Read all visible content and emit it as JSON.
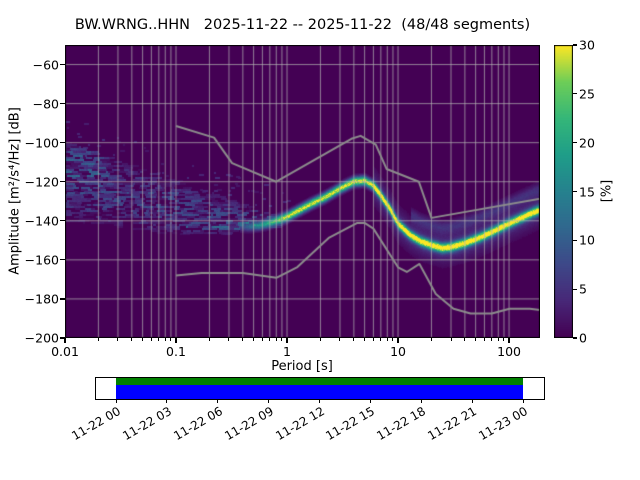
{
  "title": "BW.WRNG..HHN   2025-11-22 -- 2025-11-22  (48/48 segments)",
  "axes": {
    "xlabel": "Period [s]",
    "ylabel": "Amplitude [m²/s⁴/Hz] [dB]",
    "x_ticks": [
      0.01,
      0.1,
      1,
      10,
      100
    ],
    "x_tick_labels": [
      "0.01",
      "0.1",
      "1",
      "10",
      "100"
    ],
    "y_ticks": [
      -60,
      -80,
      -100,
      -120,
      -140,
      -160,
      -180,
      -200
    ],
    "y_tick_labels": [
      "−60",
      "−80",
      "−100",
      "−120",
      "−140",
      "−160",
      "−180",
      "−200"
    ]
  },
  "colorbar": {
    "label": "[%]",
    "ticks": [
      0,
      5,
      10,
      15,
      20,
      25,
      30
    ],
    "tick_labels": [
      "0",
      "5",
      "10",
      "15",
      "20",
      "25",
      "30"
    ]
  },
  "chart_data": {
    "type": "heatmap",
    "title": "BW.WRNG..HHN   2025-11-22 -- 2025-11-22  (48/48 segments)",
    "station": "BW.WRNG..HHN",
    "date_range": "2025-11-22 -- 2025-11-22",
    "segments_used": 48,
    "segments_total": 48,
    "xlabel": "Period [s]",
    "ylabel": "Amplitude [m²/s⁴/Hz] [dB]",
    "x_scale": "log",
    "xlim": [
      0.01,
      190
    ],
    "ylim": [
      -200,
      -50
    ],
    "colorbar": {
      "label": "[%]",
      "range": [
        0,
        30
      ],
      "colormap": "viridis"
    },
    "mode_curve": {
      "description": "Bright ridge: most probable PSD level (~30%) vs period",
      "period_s": [
        0.45,
        0.55,
        0.7,
        0.85,
        1.0,
        1.3,
        1.7,
        2.2,
        3.0,
        4.0,
        5.0,
        6.0,
        7.0,
        8.5,
        10,
        13,
        16,
        20,
        25,
        30,
        40,
        55,
        75,
        100,
        130,
        170,
        190
      ],
      "db": [
        -143,
        -142.5,
        -141,
        -139.5,
        -138,
        -134.5,
        -131,
        -128,
        -123.5,
        -120,
        -119.5,
        -122,
        -127,
        -134,
        -141.5,
        -147.5,
        -150.5,
        -152.5,
        -154,
        -153.5,
        -151.5,
        -148.5,
        -145,
        -141.5,
        -138.5,
        -135.5,
        -134.5
      ]
    },
    "noise_models": {
      "description": "Peterson global high/low noise models (gray lines)",
      "high": {
        "period_s": [
          0.1,
          0.22,
          0.32,
          0.8,
          3.8,
          4.6,
          6.3,
          7.9,
          15.4,
          20.0,
          354.8
        ],
        "db": [
          -91.5,
          -97.4,
          -110.5,
          -120.0,
          -98.0,
          -96.5,
          -101.0,
          -113.5,
          -120.0,
          -138.5,
          -126.0
        ]
      },
      "low": {
        "period_s": [
          0.1,
          0.17,
          0.4,
          0.8,
          1.24,
          2.4,
          4.3,
          5.0,
          6.0,
          10.0,
          12.0,
          15.6,
          21.9,
          31.6,
          45.0,
          70.0,
          101.0,
          154.0,
          328.0
        ],
        "db": [
          -168.0,
          -166.7,
          -166.7,
          -169.2,
          -163.7,
          -148.6,
          -141.1,
          -141.1,
          -144.0,
          -163.8,
          -166.2,
          -162.1,
          -177.5,
          -185.0,
          -187.5,
          -187.5,
          -185.0,
          -185.0,
          -187.5
        ]
      }
    },
    "diffuse_region": {
      "description": "Low-probability scattered PSD values at short periods",
      "period_range_s": [
        0.01,
        0.85
      ],
      "upper_db": {
        "period_s": [
          0.01,
          0.03,
          0.1,
          0.3,
          0.8
        ],
        "db": [
          -100,
          -110,
          -120,
          -130,
          -137
        ]
      },
      "lower_db": {
        "period_s": [
          0.01,
          0.03,
          0.1,
          0.3,
          0.8
        ],
        "db": [
          -138,
          -141,
          -145,
          -146,
          -143
        ]
      },
      "max_percent": 12
    }
  },
  "timeline": {
    "date_labels": [
      "11-22 00",
      "11-22 03",
      "11-22 06",
      "11-22 09",
      "11-22 12",
      "11-22 15",
      "11-22 18",
      "11-22 21",
      "11-23 00"
    ],
    "used_color": "#008000",
    "coverage_color": "#0000ff"
  }
}
